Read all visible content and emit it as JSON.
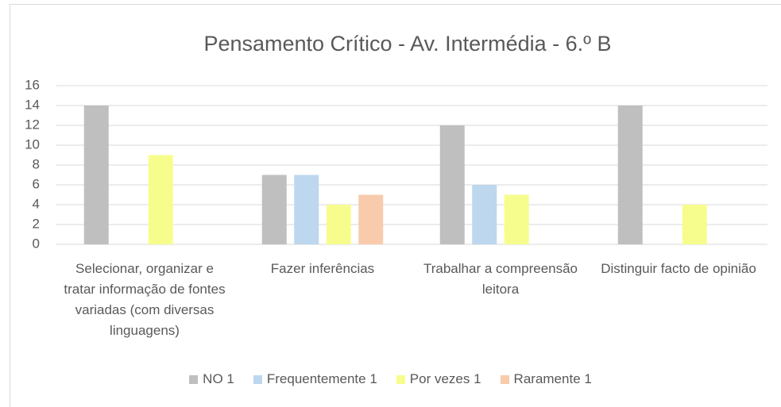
{
  "chart_data": {
    "type": "bar",
    "title": "Pensamento Crítico - Av. Intermédia - 6.º B",
    "categories": [
      "Selecionar, organizar e tratar informação de fontes variadas (com diversas linguagens)",
      "Fazer inferências",
      "Trabalhar a compreensão leitora",
      "Distinguir facto de opinião"
    ],
    "series": [
      {
        "name": "NO 1",
        "color": "#bfbfbf",
        "values": [
          14,
          7,
          12,
          14
        ]
      },
      {
        "name": "Frequentemente 1",
        "color": "#bdd7ee",
        "values": [
          0,
          7,
          6,
          0
        ]
      },
      {
        "name": "Por vezes 1",
        "color": "#f7fd8c",
        "values": [
          9,
          4,
          5,
          4
        ]
      },
      {
        "name": "Raramente 1",
        "color": "#f8cbad",
        "values": [
          0,
          5,
          0,
          0
        ]
      }
    ],
    "ylim": [
      0,
      16
    ],
    "yticks": [
      0,
      2,
      4,
      6,
      8,
      10,
      12,
      14,
      16
    ],
    "grid": true,
    "legend": "bottom"
  }
}
